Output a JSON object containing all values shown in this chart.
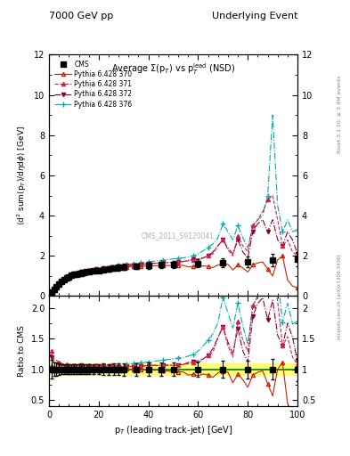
{
  "title_left": "7000 GeV pp",
  "title_right": "Underlying Event",
  "plot_title": "Average $\\Sigma$(p$_T$) vs p$_T^{\\mathrm{lead}}$ (NSD)",
  "xlabel": "p$_T$ (leading track-jet) [GeV]",
  "ylabel_main": "$\\langle$d$^2$ sum(p$_T$)/d$\\eta$d$\\phi$$\\rangle$ [GeV]",
  "ylabel_ratio": "Ratio to CMS",
  "right_label_top": "Rivet 3.1.10, ≥ 3.4M events",
  "right_label_bot": "mcplots.cern.ch [arXiv:1306.3436]",
  "watermark": "CMS_2011_S9120041",
  "cms_x": [
    1.0,
    2.0,
    3.0,
    4.0,
    5.0,
    6.0,
    7.0,
    8.0,
    9.0,
    10.0,
    11.0,
    12.0,
    13.0,
    14.0,
    15.0,
    16.0,
    18.0,
    20.0,
    22.0,
    24.0,
    26.0,
    28.0,
    30.0,
    35.0,
    40.0,
    45.0,
    50.0,
    60.0,
    70.0,
    80.0,
    90.0,
    100.0
  ],
  "cms_y": [
    0.2,
    0.35,
    0.48,
    0.6,
    0.72,
    0.82,
    0.9,
    0.97,
    1.03,
    1.07,
    1.1,
    1.13,
    1.15,
    1.17,
    1.2,
    1.22,
    1.25,
    1.28,
    1.32,
    1.35,
    1.38,
    1.42,
    1.45,
    1.48,
    1.52,
    1.55,
    1.58,
    1.62,
    1.65,
    1.7,
    1.78,
    1.85
  ],
  "cms_yerr": [
    0.03,
    0.04,
    0.05,
    0.06,
    0.06,
    0.07,
    0.07,
    0.08,
    0.08,
    0.08,
    0.09,
    0.09,
    0.09,
    0.09,
    0.1,
    0.1,
    0.1,
    0.11,
    0.12,
    0.12,
    0.13,
    0.14,
    0.15,
    0.15,
    0.16,
    0.17,
    0.18,
    0.2,
    0.22,
    0.25,
    0.3,
    0.35
  ],
  "py370_x": [
    1,
    2,
    3,
    4,
    5,
    6,
    7,
    8,
    9,
    10,
    11,
    12,
    13,
    14,
    15,
    16,
    17,
    18,
    19,
    20,
    21,
    22,
    23,
    24,
    25,
    26,
    27,
    28,
    29,
    30,
    31,
    32,
    33,
    34,
    35,
    36,
    37,
    38,
    39,
    40,
    42,
    44,
    46,
    48,
    50,
    52,
    54,
    56,
    58,
    60,
    62,
    64,
    66,
    68,
    70,
    72,
    74,
    76,
    78,
    80,
    82,
    84,
    86,
    88,
    90,
    92,
    94,
    96,
    98,
    100
  ],
  "py370_y": [
    0.21,
    0.35,
    0.49,
    0.61,
    0.73,
    0.83,
    0.91,
    0.98,
    1.04,
    1.08,
    1.12,
    1.15,
    1.17,
    1.19,
    1.22,
    1.24,
    1.25,
    1.27,
    1.29,
    1.31,
    1.32,
    1.34,
    1.35,
    1.37,
    1.38,
    1.39,
    1.41,
    1.42,
    1.43,
    1.45,
    1.46,
    1.46,
    1.47,
    1.47,
    1.48,
    1.48,
    1.49,
    1.49,
    1.5,
    1.51,
    1.51,
    1.52,
    1.52,
    1.52,
    1.52,
    1.52,
    1.53,
    1.45,
    1.48,
    1.45,
    1.5,
    1.48,
    1.42,
    1.55,
    1.6,
    1.58,
    1.3,
    1.55,
    1.4,
    1.2,
    1.55,
    1.65,
    1.7,
    1.35,
    1.0,
    1.8,
    2.0,
    0.8,
    0.5,
    0.4
  ],
  "py371_x": [
    1,
    2,
    3,
    4,
    5,
    6,
    7,
    8,
    9,
    10,
    11,
    12,
    13,
    14,
    15,
    16,
    17,
    18,
    19,
    20,
    21,
    22,
    23,
    24,
    25,
    26,
    27,
    28,
    29,
    30,
    31,
    32,
    33,
    34,
    35,
    36,
    37,
    38,
    39,
    40,
    42,
    44,
    46,
    48,
    50,
    52,
    54,
    56,
    58,
    60,
    62,
    64,
    66,
    68,
    70,
    72,
    74,
    76,
    78,
    80,
    82,
    84,
    86,
    88,
    90,
    92,
    94,
    96,
    98,
    100
  ],
  "py371_y": [
    0.26,
    0.41,
    0.55,
    0.67,
    0.79,
    0.89,
    0.97,
    1.04,
    1.1,
    1.14,
    1.18,
    1.21,
    1.23,
    1.25,
    1.28,
    1.3,
    1.32,
    1.33,
    1.35,
    1.37,
    1.38,
    1.4,
    1.41,
    1.43,
    1.44,
    1.46,
    1.47,
    1.48,
    1.5,
    1.51,
    1.52,
    1.53,
    1.54,
    1.55,
    1.56,
    1.57,
    1.58,
    1.59,
    1.6,
    1.61,
    1.63,
    1.64,
    1.66,
    1.67,
    1.68,
    1.7,
    1.72,
    1.75,
    1.8,
    1.85,
    1.9,
    2.0,
    2.1,
    2.5,
    2.8,
    2.3,
    2.0,
    3.0,
    2.5,
    2.2,
    3.5,
    3.8,
    4.2,
    4.8,
    5.0,
    3.8,
    2.5,
    2.8,
    2.2,
    2.0
  ],
  "py372_x": [
    1,
    2,
    3,
    4,
    5,
    6,
    7,
    8,
    9,
    10,
    11,
    12,
    13,
    14,
    15,
    16,
    17,
    18,
    19,
    20,
    21,
    22,
    23,
    24,
    25,
    26,
    27,
    28,
    29,
    30,
    31,
    32,
    33,
    34,
    35,
    36,
    37,
    38,
    39,
    40,
    42,
    44,
    46,
    48,
    50,
    52,
    54,
    56,
    58,
    60,
    62,
    64,
    66,
    68,
    70,
    72,
    74,
    76,
    78,
    80,
    82,
    84,
    86,
    88,
    90,
    92,
    94,
    96,
    98,
    100
  ],
  "py372_y": [
    0.24,
    0.39,
    0.53,
    0.65,
    0.77,
    0.87,
    0.95,
    1.02,
    1.08,
    1.12,
    1.16,
    1.19,
    1.22,
    1.24,
    1.26,
    1.28,
    1.3,
    1.32,
    1.34,
    1.36,
    1.37,
    1.39,
    1.4,
    1.42,
    1.43,
    1.45,
    1.46,
    1.47,
    1.49,
    1.5,
    1.51,
    1.52,
    1.53,
    1.54,
    1.55,
    1.56,
    1.57,
    1.58,
    1.6,
    1.61,
    1.63,
    1.64,
    1.66,
    1.67,
    1.68,
    1.7,
    1.72,
    1.78,
    1.82,
    1.78,
    1.9,
    2.0,
    2.2,
    2.5,
    2.8,
    2.4,
    2.1,
    2.8,
    2.2,
    1.9,
    3.2,
    3.6,
    3.8,
    3.2,
    3.8,
    2.8,
    2.5,
    3.2,
    2.8,
    2.1
  ],
  "py376_x": [
    1,
    2,
    3,
    4,
    5,
    6,
    7,
    8,
    9,
    10,
    11,
    12,
    13,
    14,
    15,
    16,
    17,
    18,
    19,
    20,
    21,
    22,
    23,
    24,
    25,
    26,
    27,
    28,
    29,
    30,
    31,
    32,
    33,
    34,
    35,
    36,
    37,
    38,
    39,
    40,
    42,
    44,
    46,
    48,
    50,
    52,
    54,
    56,
    58,
    60,
    62,
    64,
    66,
    68,
    70,
    72,
    74,
    76,
    78,
    80,
    82,
    84,
    86,
    88,
    90,
    92,
    94,
    96,
    98,
    100
  ],
  "py376_y": [
    0.21,
    0.35,
    0.48,
    0.6,
    0.72,
    0.82,
    0.91,
    0.98,
    1.04,
    1.09,
    1.13,
    1.17,
    1.2,
    1.22,
    1.25,
    1.27,
    1.29,
    1.31,
    1.33,
    1.35,
    1.37,
    1.39,
    1.41,
    1.43,
    1.45,
    1.47,
    1.49,
    1.51,
    1.53,
    1.55,
    1.57,
    1.58,
    1.6,
    1.61,
    1.63,
    1.64,
    1.66,
    1.67,
    1.69,
    1.7,
    1.73,
    1.76,
    1.79,
    1.82,
    1.85,
    1.88,
    1.9,
    1.95,
    2.0,
    2.1,
    2.25,
    2.4,
    2.6,
    2.9,
    3.6,
    3.2,
    2.8,
    3.5,
    2.9,
    2.4,
    3.5,
    3.8,
    4.0,
    5.0,
    9.0,
    4.5,
    3.2,
    3.8,
    3.2,
    3.3
  ],
  "color_370": "#cc2200",
  "color_371": "#cc2255",
  "color_372": "#880033",
  "color_376": "#00aaaa",
  "ylim_main": [
    0,
    12
  ],
  "ylim_ratio": [
    0.4,
    2.2
  ],
  "xlim": [
    0,
    100
  ],
  "yticks_main": [
    0,
    2,
    4,
    6,
    8,
    10,
    12
  ],
  "yticks_ratio": [
    0.5,
    1.0,
    1.5,
    2.0
  ],
  "xticks": [
    0,
    20,
    40,
    60,
    80,
    100
  ]
}
